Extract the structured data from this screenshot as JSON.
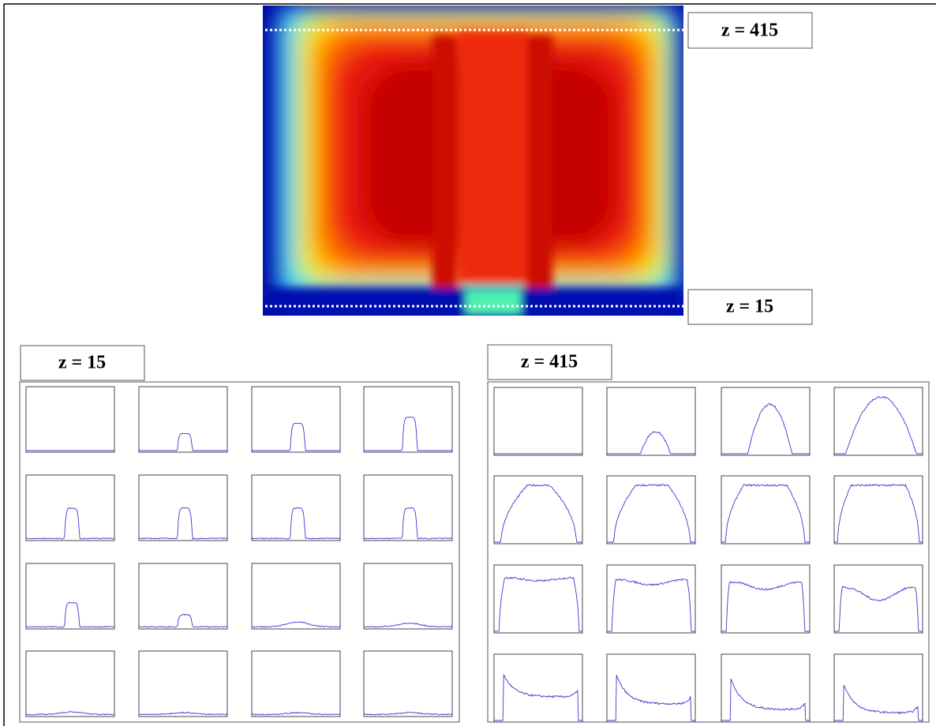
{
  "image": {
    "labels": {
      "top": "z = 415",
      "bottom": "z = 15"
    }
  },
  "panels": [
    {
      "title": "z = 15"
    },
    {
      "title": "z = 415"
    }
  ]
}
